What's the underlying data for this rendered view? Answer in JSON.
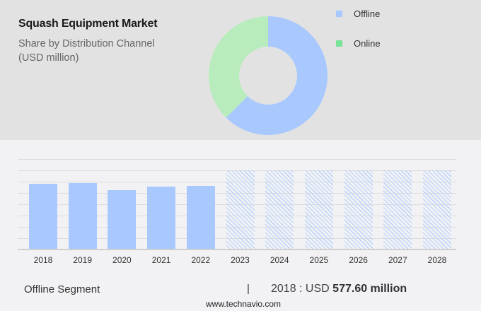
{
  "header": {
    "title": "Squash Equipment Market",
    "subtitle_line1": "Share by Distribution Channel",
    "subtitle_line2": "(USD million)"
  },
  "legend": [
    {
      "label": "Offline",
      "color": "#a8c8fe"
    },
    {
      "label": "Online",
      "color": "#78e296"
    }
  ],
  "footer": {
    "segment": "Offline Segment",
    "separator": "|",
    "value_prefix": "2018 : USD",
    "value_bold": "577.60 million",
    "url": "www.technavio.com"
  },
  "chart_data": [
    {
      "type": "pie",
      "title": "Squash Equipment Market",
      "subtitle": "Share by Distribution Channel (USD million)",
      "donut": true,
      "categories": [
        "Offline",
        "Online"
      ],
      "values": [
        62.5,
        37.5
      ],
      "colors": [
        "#a8c8fe",
        "#b8ecbc"
      ],
      "legend_position": "right"
    },
    {
      "type": "bar",
      "categories": [
        "2018",
        "2019",
        "2020",
        "2021",
        "2022",
        "2023",
        "2024",
        "2025",
        "2026",
        "2027",
        "2028"
      ],
      "values": [
        577.6,
        584,
        521,
        553,
        559,
        null,
        null,
        null,
        null,
        null,
        null
      ],
      "forecast_categories": [
        "2023",
        "2024",
        "2025",
        "2026",
        "2027",
        "2028"
      ],
      "forecast_style": "hatched placeholder (full height, values hidden)",
      "series_name": "Offline Segment",
      "xlabel": "",
      "ylabel": "",
      "ylim": [
        0,
        800
      ],
      "grid": true,
      "bar_color": "#a8c8fe"
    }
  ]
}
